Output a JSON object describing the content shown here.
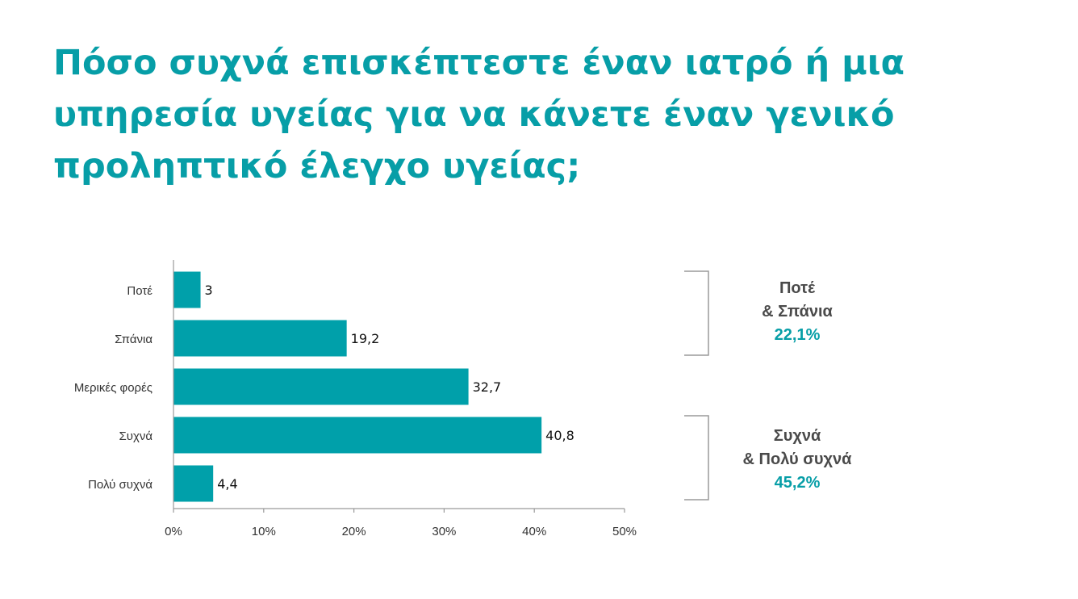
{
  "title": "Πόσο συχνά επισκέπτεστε έναν ιατρό ή μια υπηρεσία υγείας για να κάνετε έναν γενικό προληπτικό έλεγχο υγείας;",
  "colors": {
    "accent": "#079ea7",
    "bar": "#00a0aa",
    "axis": "#9a9a9a",
    "text": "#333333",
    "groupText": "#4a4a4a"
  },
  "chart_data": {
    "type": "bar",
    "orientation": "horizontal",
    "categories": [
      "Ποτέ",
      "Σπάνια",
      "Μερικές φορές",
      "Συχνά",
      "Πολύ συχνά"
    ],
    "values": [
      3,
      19.2,
      32.7,
      40.8,
      4.4
    ],
    "value_labels": [
      "3",
      "19,2",
      "32,7",
      "40,8",
      "4,4"
    ],
    "xlim": [
      0,
      50
    ],
    "xticks": [
      0,
      10,
      20,
      30,
      40,
      50
    ],
    "xtick_labels": [
      "0%",
      "10%",
      "20%",
      "30%",
      "40%",
      "50%"
    ],
    "grid": false
  },
  "groups": [
    {
      "line1": "Ποτέ",
      "line2": "& Σπάνια",
      "value": "22,1%"
    },
    {
      "line1": "Συχνά",
      "line2": "& Πολύ συχνά",
      "value": "45,2%"
    }
  ]
}
